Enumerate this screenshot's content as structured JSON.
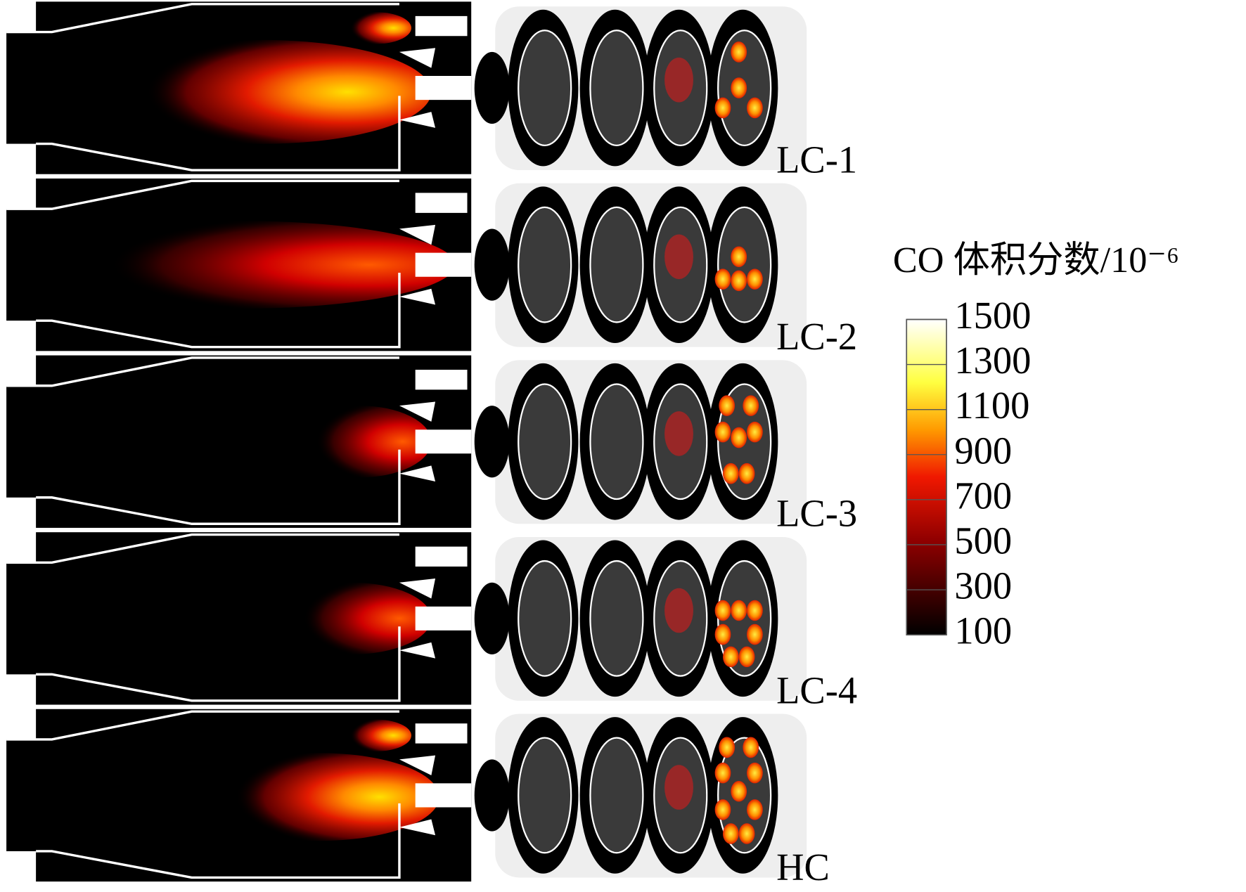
{
  "panels": [
    {
      "label": "LC-1"
    },
    {
      "label": "LC-2"
    },
    {
      "label": "LC-3"
    },
    {
      "label": "LC-4"
    },
    {
      "label": "HC"
    }
  ],
  "colorbar": {
    "title": "CO 体积分数/10⁻⁶",
    "ticks": [
      1500,
      1300,
      1100,
      900,
      700,
      500,
      300,
      100
    ]
  }
}
